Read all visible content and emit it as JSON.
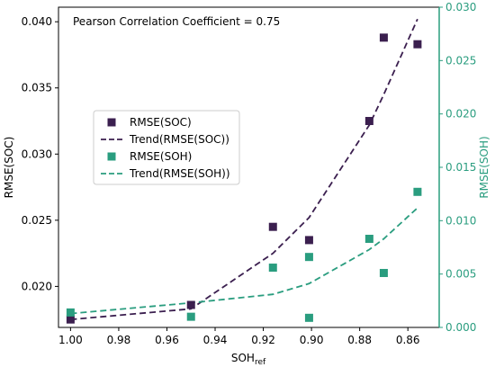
{
  "chart_data": {
    "type": "scatter",
    "annotation": "Pearson Correlation Coefficient = 0.75",
    "x_axis": {
      "label_main": "SOH",
      "label_sub": "ref",
      "range": [
        1.005,
        0.847
      ],
      "inverted": true,
      "ticks": [
        1.0,
        0.98,
        0.96,
        0.94,
        0.92,
        0.9,
        0.88,
        0.86
      ],
      "tick_labels": [
        "1.00",
        "0.98",
        "0.96",
        "0.94",
        "0.92",
        "0.90",
        "0.88",
        "0.86"
      ]
    },
    "y_left": {
      "label": "RMSE(SOC)",
      "range": [
        0.0169,
        0.0411
      ],
      "ticks": [
        0.02,
        0.025,
        0.03,
        0.035,
        0.04
      ],
      "tick_labels": [
        "0.020",
        "0.025",
        "0.030",
        "0.035",
        "0.040"
      ],
      "color": "#000000"
    },
    "y_right": {
      "label": "RMSE(SOH)",
      "range": [
        0.0,
        0.03
      ],
      "ticks": [
        0.0,
        0.005,
        0.01,
        0.015,
        0.02,
        0.025,
        0.03
      ],
      "tick_labels": [
        "0.000",
        "0.005",
        "0.010",
        "0.015",
        "0.020",
        "0.025",
        "0.030"
      ],
      "color": "#2a9d7f"
    },
    "series": [
      {
        "name": "RMSE(SOC)",
        "kind": "scatter",
        "axis": "left",
        "color": "#3b1f4f",
        "marker": "square",
        "x": [
          1.0,
          0.95,
          0.916,
          0.901,
          0.876,
          0.87,
          0.856
        ],
        "y": [
          0.0175,
          0.0186,
          0.0245,
          0.0235,
          0.0325,
          0.0388,
          0.0383
        ]
      },
      {
        "name": "Trend(RMSE(SOC))",
        "kind": "line",
        "style": "dashed",
        "axis": "left",
        "color": "#3b1f4f",
        "x": [
          1.0,
          0.95,
          0.916,
          0.901,
          0.876,
          0.87,
          0.856
        ],
        "y": [
          0.0175,
          0.0183,
          0.0225,
          0.0252,
          0.0322,
          0.0345,
          0.0402
        ]
      },
      {
        "name": "RMSE(SOH)",
        "kind": "scatter",
        "axis": "right",
        "color": "#2a9d7f",
        "marker": "square",
        "x": [
          1.0,
          0.95,
          0.916,
          0.901,
          0.901,
          0.876,
          0.87,
          0.856
        ],
        "y": [
          0.0014,
          0.001,
          0.0056,
          0.0066,
          0.0009,
          0.0083,
          0.0051,
          0.0127
        ]
      },
      {
        "name": "Trend(RMSE(SOH))",
        "kind": "line",
        "style": "dashed",
        "axis": "right",
        "color": "#2a9d7f",
        "x": [
          1.0,
          0.95,
          0.916,
          0.901,
          0.876,
          0.87,
          0.856
        ],
        "y": [
          0.0013,
          0.0023,
          0.0031,
          0.0041,
          0.0073,
          0.0083,
          0.0112
        ]
      }
    ],
    "legend": {
      "placement": "center-left",
      "entries": [
        "RMSE(SOC)",
        "Trend(RMSE(SOC))",
        "RMSE(SOH)",
        "Trend(RMSE(SOH))"
      ]
    },
    "grid": false
  }
}
